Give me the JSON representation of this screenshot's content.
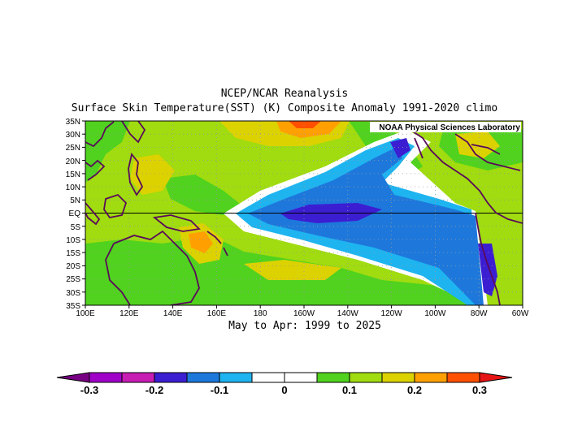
{
  "title": {
    "line1": "NCEP/NCAR Reanalysis",
    "line2": "Surface Skin Temperature(SST) (K) Composite Anomaly 1991-2020 climo"
  },
  "subtitle": "May to Apr: 1999 to 2025",
  "credit": "NOAA Physical Sciences Laboratory",
  "lat_labels": [
    "35N",
    "30N",
    "25N",
    "20N",
    "15N",
    "10N",
    "5N",
    "EQ",
    "5S",
    "10S",
    "15S",
    "20S",
    "25S",
    "30S",
    "35S"
  ],
  "lon_labels": [
    "100E",
    "120E",
    "140E",
    "160E",
    "180",
    "160W",
    "140W",
    "120W",
    "100W",
    "80W",
    "60W"
  ],
  "colorbar": {
    "colors": [
      "#a000c8",
      "#c81eb4",
      "#3c1ed2",
      "#1e78dc",
      "#1eb4f0",
      "#ffffff",
      "#ffffff",
      "#50d21e",
      "#a0dc0f",
      "#dcd200",
      "#ffa000",
      "#ff5000"
    ],
    "under_color": "#780082",
    "over_color": "#e61414",
    "tick_labels": [
      "-0.3",
      "-0.2",
      "-0.1",
      "0",
      "0.1",
      "0.2",
      "0.3"
    ]
  },
  "colors": {
    "coast": "#5a0a5a",
    "grid": "#999999"
  }
}
